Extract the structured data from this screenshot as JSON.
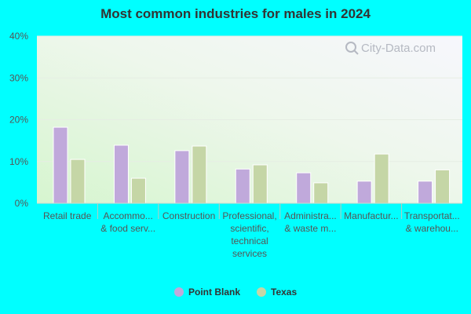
{
  "chart_data": {
    "type": "bar",
    "title": "Most common industries for males in 2024",
    "xlabel": "",
    "ylabel": "",
    "ylim": [
      0,
      40
    ],
    "yticks": [
      "0%",
      "10%",
      "20%",
      "30%",
      "40%"
    ],
    "categories": [
      [
        "Retail trade"
      ],
      [
        "Accommo...",
        "& food serv..."
      ],
      [
        "Construction"
      ],
      [
        "Professional,",
        "scientific,",
        "technical",
        "services"
      ],
      [
        "Administra...",
        "& waste m..."
      ],
      [
        "Manufactur..."
      ],
      [
        "Transportat...",
        "& warehou..."
      ]
    ],
    "series": [
      {
        "name": "Point Blank",
        "color": "#c0a9db",
        "values": [
          18.2,
          13.9,
          12.6,
          8.2,
          7.3,
          5.3,
          5.3
        ]
      },
      {
        "name": "Texas",
        "color": "#c5d6a6",
        "values": [
          10.5,
          6.0,
          13.7,
          9.2,
          4.9,
          11.8,
          8.0
        ]
      }
    ],
    "grid": true,
    "legend": "bottom-center"
  },
  "watermark": {
    "text": "City-Data.com"
  }
}
